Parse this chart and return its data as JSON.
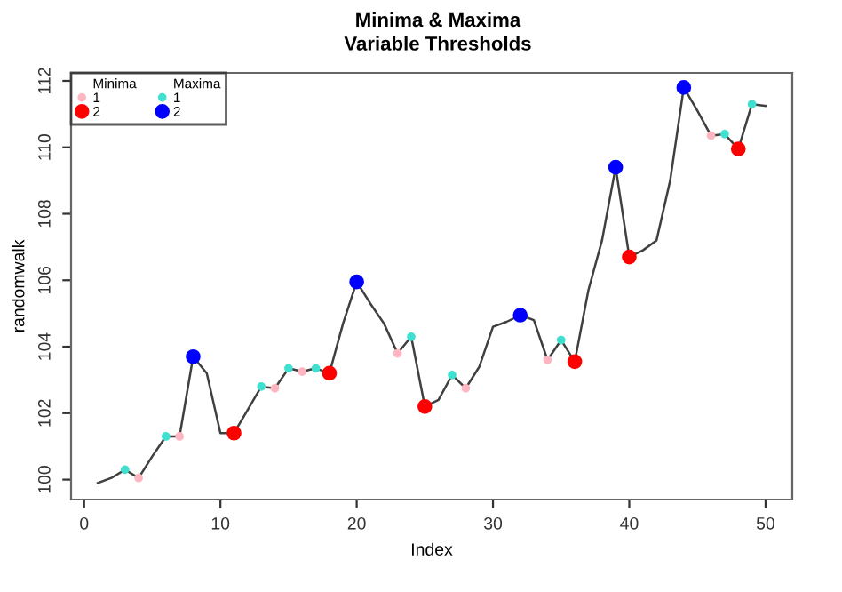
{
  "chart_data": {
    "type": "line",
    "title": "Minima & Maxima",
    "subtitle": "Variable Thresholds",
    "xlabel": "Index",
    "ylabel": "randomwalk",
    "legend_title": [
      "Minima",
      "Maxima"
    ],
    "legend": "top left",
    "grid": false,
    "xlim": [
      -0.96,
      51.96
    ],
    "ylim": [
      99.4,
      112.24
    ],
    "xticks": [
      0,
      10,
      20,
      30,
      40,
      50
    ],
    "yticks": [
      100,
      102,
      104,
      106,
      108,
      110,
      112
    ],
    "series": [
      {
        "color": "#404040",
        "x": [
          1,
          2,
          3,
          4,
          5,
          6,
          7,
          8,
          9,
          10,
          11,
          12,
          13,
          14,
          15,
          16,
          17,
          18,
          19,
          20,
          21,
          22,
          23,
          24,
          25,
          26,
          27,
          28,
          29,
          30,
          31,
          32,
          33,
          34,
          35,
          36,
          37,
          38,
          39,
          40,
          41,
          42,
          43,
          44,
          45,
          46,
          47,
          48,
          49,
          50
        ],
        "values": [
          99.9,
          100.05,
          100.3,
          100.05,
          100.7,
          101.3,
          101.3,
          103.7,
          103.2,
          101.4,
          101.4,
          102.1,
          102.8,
          102.75,
          103.35,
          103.25,
          103.35,
          103.2,
          104.7,
          105.95,
          105.3,
          104.7,
          103.8,
          104.3,
          102.2,
          102.4,
          103.15,
          102.75,
          103.4,
          104.6,
          104.75,
          104.95,
          104.8,
          103.6,
          104.2,
          103.55,
          105.7,
          107.2,
          109.4,
          106.7,
          106.9,
          107.2,
          109.0,
          111.8,
          111.1,
          110.35,
          110.4,
          109.95,
          111.3,
          111.25
        ]
      },
      {
        "type": "scatter",
        "marker": "circle",
        "name": "1",
        "color": "#ffb6c1",
        "x": [
          4,
          7,
          14,
          16,
          23,
          28,
          34,
          46
        ],
        "values": [
          100.05,
          101.3,
          102.75,
          103.25,
          103.8,
          102.75,
          103.6,
          110.35
        ]
      },
      {
        "type": "scatter",
        "marker": "circle",
        "name": "2",
        "color": "#ff0000",
        "x": [
          11,
          18,
          25,
          36,
          40,
          48
        ],
        "values": [
          101.4,
          103.2,
          102.2,
          103.55,
          106.7,
          109.95
        ]
      },
      {
        "type": "scatter",
        "marker": "circle",
        "name": "1",
        "color": "#40e0d0",
        "x": [
          3,
          6,
          13,
          15,
          17,
          24,
          27,
          35,
          47,
          49
        ],
        "values": [
          100.3,
          101.3,
          102.8,
          103.35,
          103.35,
          104.3,
          103.15,
          104.2,
          110.4,
          111.3
        ]
      },
      {
        "type": "scatter",
        "marker": "circle",
        "name": "2",
        "color": "#0000ff",
        "x": [
          8,
          20,
          32,
          39,
          44
        ],
        "values": [
          103.7,
          105.95,
          104.95,
          109.4,
          111.8
        ]
      }
    ]
  }
}
